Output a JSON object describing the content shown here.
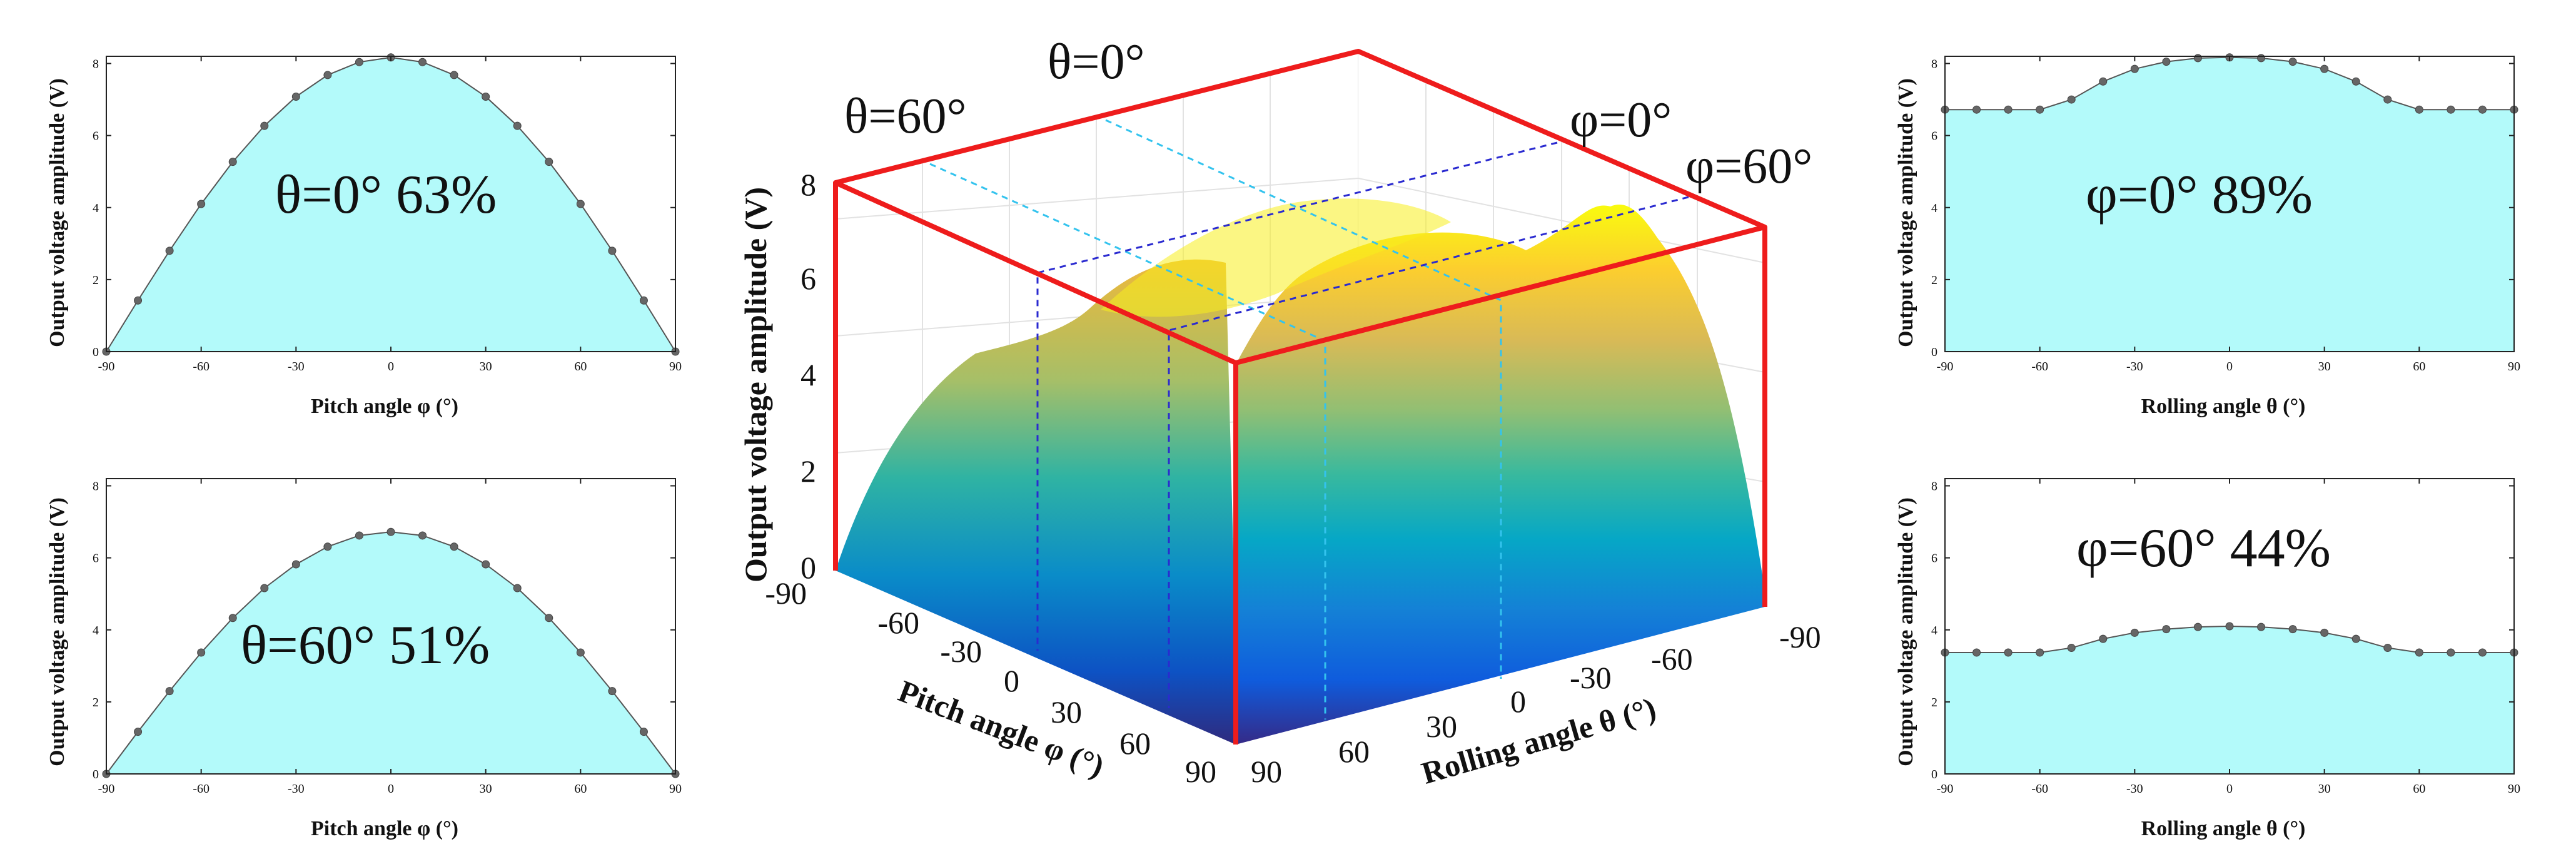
{
  "chart_data": [
    {
      "id": "p1",
      "type": "area",
      "x": [
        -90,
        -80,
        -70,
        -60,
        -50,
        -40,
        -30,
        -20,
        -10,
        0,
        10,
        20,
        30,
        40,
        50,
        60,
        70,
        80,
        90
      ],
      "values": [
        0,
        1.42,
        2.8,
        4.1,
        5.27,
        6.27,
        7.08,
        7.68,
        8.04,
        8.17,
        8.04,
        7.68,
        7.08,
        6.27,
        5.27,
        4.1,
        2.8,
        1.42,
        0
      ],
      "xlim": [
        -90,
        90
      ],
      "ylim": [
        0,
        8.2
      ],
      "xticks": [
        -90,
        -60,
        -30,
        0,
        30,
        60,
        90
      ],
      "yticks": [
        0,
        2,
        4,
        6,
        8
      ],
      "xlabel": "Pitch angle φ (°)",
      "ylabel": "Output voltage amplitude (V)",
      "annotation": "θ=0°   63%",
      "fill": "#b3fafa"
    },
    {
      "id": "p2",
      "type": "area",
      "x": [
        -90,
        -80,
        -70,
        -60,
        -50,
        -40,
        -30,
        -20,
        -10,
        0,
        10,
        20,
        30,
        40,
        50,
        60,
        70,
        80,
        90
      ],
      "values": [
        0,
        1.17,
        2.3,
        3.37,
        4.33,
        5.16,
        5.82,
        6.31,
        6.62,
        6.72,
        6.62,
        6.31,
        5.82,
        5.16,
        4.33,
        3.37,
        2.3,
        1.17,
        0
      ],
      "xlim": [
        -90,
        90
      ],
      "ylim": [
        0,
        8.2
      ],
      "xticks": [
        -90,
        -60,
        -30,
        0,
        30,
        60,
        90
      ],
      "yticks": [
        0,
        2,
        4,
        6,
        8
      ],
      "xlabel": "Pitch angle φ (°)",
      "ylabel": "Output voltage amplitude (V)",
      "annotation": "θ=60°   51%",
      "fill": "#b3fafa"
    },
    {
      "id": "p3",
      "type": "area",
      "x": [
        -90,
        -80,
        -70,
        -60,
        -50,
        -40,
        -30,
        -20,
        -10,
        0,
        10,
        20,
        30,
        40,
        50,
        60,
        70,
        80,
        90
      ],
      "values": [
        6.72,
        6.72,
        6.72,
        6.72,
        7.0,
        7.5,
        7.85,
        8.05,
        8.15,
        8.17,
        8.15,
        8.05,
        7.85,
        7.5,
        7.0,
        6.72,
        6.72,
        6.72,
        6.72
      ],
      "xlim": [
        -90,
        90
      ],
      "ylim": [
        0,
        8.2
      ],
      "xticks": [
        -90,
        -60,
        -30,
        0,
        30,
        60,
        90
      ],
      "yticks": [
        0,
        2,
        4,
        6,
        8
      ],
      "xlabel": "Rolling angle θ (°)",
      "ylabel": "Output voltage amplitude (V)",
      "annotation": "φ=0°   89%",
      "fill": "#b3fafa"
    },
    {
      "id": "p4",
      "type": "area",
      "x": [
        -90,
        -80,
        -70,
        -60,
        -50,
        -40,
        -30,
        -20,
        -10,
        0,
        10,
        20,
        30,
        40,
        50,
        60,
        70,
        80,
        90
      ],
      "values": [
        3.37,
        3.37,
        3.37,
        3.37,
        3.5,
        3.75,
        3.92,
        4.02,
        4.08,
        4.1,
        4.08,
        4.02,
        3.92,
        3.75,
        3.5,
        3.37,
        3.37,
        3.37,
        3.37
      ],
      "xlim": [
        -90,
        90
      ],
      "ylim": [
        0,
        8.2
      ],
      "xticks": [
        -90,
        -60,
        -30,
        0,
        30,
        60,
        90
      ],
      "yticks": [
        0,
        2,
        4,
        6,
        8
      ],
      "xlabel": "Rolling angle θ (°)",
      "ylabel": "Output voltage amplitude (V)",
      "annotation": "φ=60°   44%",
      "fill": "#b3fafa"
    },
    {
      "id": "surf",
      "type": "surface",
      "xlabel": "Pitch angle φ (°)",
      "ylabel": "Rolling angle θ (°)",
      "zlabel": "Output voltage amplitude (V)",
      "xticks": [
        -90,
        -60,
        -30,
        0,
        30,
        60,
        90
      ],
      "yticks": [
        90,
        60,
        30,
        0,
        -30,
        -60,
        -90
      ],
      "zticks": [
        0,
        2,
        4,
        6,
        8
      ],
      "zlim": [
        0,
        8.2
      ],
      "colormap": "parula",
      "cut_lines": [
        {
          "label": "θ=0°",
          "color": "#33c3ee"
        },
        {
          "label": "θ=60°",
          "color": "#33c3ee"
        },
        {
          "label": "φ=0°",
          "color": "#2a2ad0"
        },
        {
          "label": "φ=60°",
          "color": "#2a2ad0"
        }
      ],
      "frame_color": "#ee1c1c"
    }
  ]
}
